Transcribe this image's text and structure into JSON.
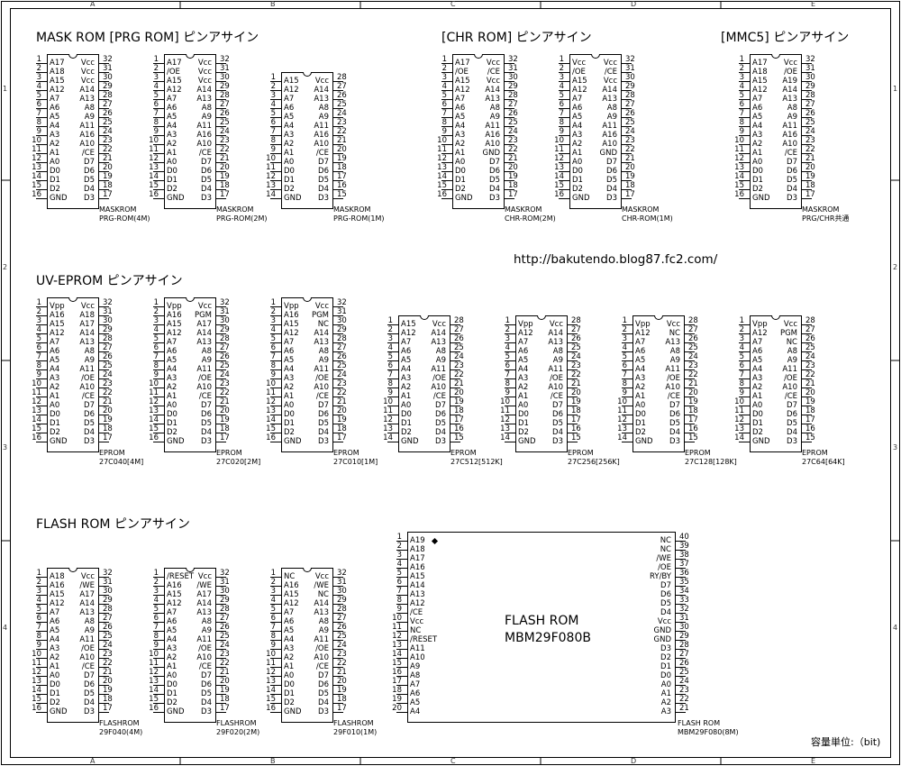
{
  "frame": {
    "cols": [
      "A",
      "B",
      "C",
      "D",
      "E"
    ],
    "rows": [
      "1",
      "2",
      "3",
      "4"
    ]
  },
  "sections": {
    "mask_prg": "MASK ROM [PRG ROM] ピンアサイン",
    "chr": "[CHR ROM] ピンアサイン",
    "mmc5": "[MMC5] ピンアサイン",
    "uveprom": "UV-EPROM ピンアサイン",
    "flash": "FLASH ROM ピンアサイン"
  },
  "url": "http://bakutendo.blog87.fc2.com/",
  "unit_note": "容量単位:（bit)",
  "chips": [
    {
      "id": "prg4m",
      "caption": [
        "MASKROM",
        "PRG-ROM(4M)"
      ],
      "left": [
        "A17",
        "A18",
        "A15",
        "A12",
        "A7",
        "A6",
        "A5",
        "A4",
        "A3",
        "A2",
        "A1",
        "A0",
        "D0",
        "D1",
        "D2",
        "GND"
      ],
      "right": [
        "Vcc",
        "Vcc",
        "Vcc",
        "A14",
        "A13",
        "A8",
        "A9",
        "A11",
        "A16",
        "A10",
        "/CE",
        "D7",
        "D6",
        "D5",
        "D4",
        "D3"
      ]
    },
    {
      "id": "prg2m",
      "caption": [
        "MASKROM",
        "PRG-ROM(2M)"
      ],
      "left": [
        "A17",
        "/OE",
        "A15",
        "A12",
        "A7",
        "A6",
        "A5",
        "A4",
        "A3",
        "A2",
        "A1",
        "A0",
        "D0",
        "D1",
        "D2",
        "GND"
      ],
      "right": [
        "Vcc",
        "Vcc",
        "Vcc",
        "A14",
        "A13",
        "A8",
        "A9",
        "A11",
        "A16",
        "A10",
        "/CE",
        "D7",
        "D6",
        "D5",
        "D4",
        "D3"
      ]
    },
    {
      "id": "prg1m",
      "caption": [
        "MASKROM",
        "PRG-ROM(1M)"
      ],
      "left": [
        "A15",
        "A12",
        "A7",
        "A6",
        "A5",
        "A4",
        "A3",
        "A2",
        "A1",
        "A0",
        "D0",
        "D1",
        "D2",
        "GND"
      ],
      "right": [
        "Vcc",
        "A14",
        "A13",
        "A8",
        "A9",
        "A11",
        "A16",
        "A10",
        "/CE",
        "D7",
        "D6",
        "D5",
        "D4",
        "D3"
      ]
    },
    {
      "id": "chr2m",
      "caption": [
        "MASKROM",
        "CHR-ROM(2M)"
      ],
      "left": [
        "A17",
        "/OE",
        "A15",
        "A12",
        "A7",
        "A6",
        "A5",
        "A4",
        "A3",
        "A2",
        "A1",
        "A0",
        "D0",
        "D1",
        "D2",
        "GND"
      ],
      "right": [
        "Vcc",
        "/CE",
        "Vcc",
        "A14",
        "A13",
        "A8",
        "A9",
        "A11",
        "A16",
        "A10",
        "GND",
        "D7",
        "D6",
        "D5",
        "D4",
        "D3"
      ]
    },
    {
      "id": "chr1m",
      "caption": [
        "MASKROM",
        "CHR-ROM(1M)"
      ],
      "left": [
        "Vcc",
        "/OE",
        "A15",
        "A12",
        "A7",
        "A6",
        "A5",
        "A4",
        "A3",
        "A2",
        "A1",
        "A0",
        "D0",
        "D1",
        "D2",
        "GND"
      ],
      "right": [
        "Vcc",
        "/CE",
        "Vcc",
        "A14",
        "A13",
        "A8",
        "A9",
        "A11",
        "A16",
        "A10",
        "GND",
        "D7",
        "D6",
        "D5",
        "D4",
        "D3"
      ]
    },
    {
      "id": "mmc5",
      "caption": [
        "MASKROM",
        "PRG/CHR共通"
      ],
      "left": [
        "A17",
        "A18",
        "A15",
        "A12",
        "A7",
        "A6",
        "A5",
        "A4",
        "A3",
        "A2",
        "A1",
        "A0",
        "D0",
        "D1",
        "D2",
        "GND"
      ],
      "right": [
        "Vcc",
        "/OE",
        "A19",
        "A14",
        "A13",
        "A8",
        "A9",
        "A11",
        "A16",
        "A10",
        "/CE",
        "D7",
        "D6",
        "D5",
        "D4",
        "D3"
      ]
    },
    {
      "id": "e040",
      "caption": [
        "EPROM",
        "27C040[4M]"
      ],
      "left": [
        "Vpp",
        "A16",
        "A15",
        "A12",
        "A7",
        "A6",
        "A5",
        "A4",
        "A3",
        "A2",
        "A1",
        "A0",
        "D0",
        "D1",
        "D2",
        "GND"
      ],
      "right": [
        "Vcc",
        "A18",
        "A17",
        "A14",
        "A13",
        "A8",
        "A9",
        "A11",
        "/OE",
        "A10",
        "/CE",
        "D7",
        "D6",
        "D5",
        "D4",
        "D3"
      ]
    },
    {
      "id": "e020",
      "caption": [
        "EPROM",
        "27C020[2M]"
      ],
      "left": [
        "Vpp",
        "A16",
        "A15",
        "A12",
        "A7",
        "A6",
        "A5",
        "A4",
        "A3",
        "A2",
        "A1",
        "A0",
        "D0",
        "D1",
        "D2",
        "GND"
      ],
      "right": [
        "Vcc",
        "PGM",
        "A17",
        "A14",
        "A13",
        "A8",
        "A9",
        "A11",
        "/OE",
        "A10",
        "/CE",
        "D7",
        "D6",
        "D5",
        "D4",
        "D3"
      ]
    },
    {
      "id": "e010",
      "caption": [
        "EPROM",
        "27C010[1M]"
      ],
      "left": [
        "Vpp",
        "A16",
        "A15",
        "A12",
        "A7",
        "A6",
        "A5",
        "A4",
        "A3",
        "A2",
        "A1",
        "A0",
        "D0",
        "D1",
        "D2",
        "GND"
      ],
      "right": [
        "Vcc",
        "PGM",
        "NC",
        "A14",
        "A13",
        "A8",
        "A9",
        "A11",
        "/OE",
        "A10",
        "/CE",
        "D7",
        "D6",
        "D5",
        "D4",
        "D3"
      ]
    },
    {
      "id": "e512",
      "caption": [
        "EPROM",
        "27C512[512K]"
      ],
      "left": [
        "A15",
        "A12",
        "A7",
        "A6",
        "A5",
        "A4",
        "A3",
        "A2",
        "A1",
        "A0",
        "D0",
        "D1",
        "D2",
        "GND"
      ],
      "right": [
        "Vcc",
        "A14",
        "A13",
        "A8",
        "A9",
        "A11",
        "/OE",
        "A10",
        "/CE",
        "D7",
        "D6",
        "D5",
        "D4",
        "D3"
      ]
    },
    {
      "id": "e256",
      "caption": [
        "EPROM",
        "27C256[256K]"
      ],
      "left": [
        "Vpp",
        "A12",
        "A7",
        "A6",
        "A5",
        "A4",
        "A3",
        "A2",
        "A1",
        "A0",
        "D0",
        "D1",
        "D2",
        "GND"
      ],
      "right": [
        "Vcc",
        "A14",
        "A13",
        "A8",
        "A9",
        "A11",
        "/OE",
        "A10",
        "/CE",
        "D7",
        "D6",
        "D5",
        "D4",
        "D3"
      ]
    },
    {
      "id": "e128",
      "caption": [
        "EPROM",
        "27C128[128K]"
      ],
      "left": [
        "Vpp",
        "A12",
        "A7",
        "A6",
        "A5",
        "A4",
        "A3",
        "A2",
        "A1",
        "A0",
        "D0",
        "D1",
        "D2",
        "GND"
      ],
      "right": [
        "Vcc",
        "NC",
        "A13",
        "A8",
        "A9",
        "A11",
        "/OE",
        "A10",
        "/CE",
        "D7",
        "D6",
        "D5",
        "D4",
        "D3"
      ]
    },
    {
      "id": "e64",
      "caption": [
        "EPROM",
        "27C64[64K]"
      ],
      "left": [
        "Vpp",
        "A12",
        "A7",
        "A6",
        "A5",
        "A4",
        "A3",
        "A2",
        "A1",
        "A0",
        "D0",
        "D1",
        "D2",
        "GND"
      ],
      "right": [
        "Vcc",
        "PGM",
        "NC",
        "A8",
        "A9",
        "A11",
        "/OE",
        "A10",
        "/CE",
        "D7",
        "D6",
        "D5",
        "D4",
        "D3"
      ]
    },
    {
      "id": "f040",
      "caption": [
        "FLASHROM",
        "29F040(4M)"
      ],
      "left": [
        "A18",
        "A16",
        "A15",
        "A12",
        "A7",
        "A6",
        "A5",
        "A4",
        "A3",
        "A2",
        "A1",
        "A0",
        "D0",
        "D1",
        "D2",
        "GND"
      ],
      "right": [
        "Vcc",
        "/WE",
        "A17",
        "A14",
        "A13",
        "A8",
        "A9",
        "A11",
        "/OE",
        "A10",
        "/CE",
        "D7",
        "D6",
        "D5",
        "D4",
        "D3"
      ]
    },
    {
      "id": "f020",
      "caption": [
        "FLASHROM",
        "29F020(2M)"
      ],
      "left": [
        "/RESET",
        "A16",
        "A15",
        "A12",
        "A7",
        "A6",
        "A5",
        "A4",
        "A3",
        "A2",
        "A1",
        "A0",
        "D0",
        "D1",
        "D2",
        "GND"
      ],
      "right": [
        "Vcc",
        "/WE",
        "A17",
        "A14",
        "A13",
        "A8",
        "A9",
        "A11",
        "/OE",
        "A10",
        "/CE",
        "D7",
        "D6",
        "D5",
        "D4",
        "D3"
      ]
    },
    {
      "id": "f010",
      "caption": [
        "FLASHROM",
        "29F010(1M)"
      ],
      "left": [
        "NC",
        "A16",
        "A15",
        "A12",
        "A7",
        "A6",
        "A5",
        "A4",
        "A3",
        "A2",
        "A1",
        "A0",
        "D0",
        "D1",
        "D2",
        "GND"
      ],
      "right": [
        "Vcc",
        "/WE",
        "NC",
        "A14",
        "A13",
        "A8",
        "A9",
        "A11",
        "/OE",
        "A10",
        "/CE",
        "D7",
        "D6",
        "D5",
        "D4",
        "D3"
      ]
    },
    {
      "id": "f080",
      "caption": [
        "FLASH ROM",
        "MBM29F080(8M)"
      ],
      "center": [
        "FLASH ROM",
        "MBM29F080B"
      ],
      "left": [
        "A19",
        "A18",
        "A17",
        "A16",
        "A15",
        "A14",
        "A13",
        "A12",
        "/CE",
        "Vcc",
        "NC",
        "/RESET",
        "A11",
        "A10",
        "A9",
        "A8",
        "A7",
        "A6",
        "A5",
        "A4"
      ],
      "right": [
        "NC",
        "NC",
        "/WE",
        "/OE",
        "RY/BY",
        "D7",
        "D6",
        "D5",
        "D4",
        "Vcc",
        "GND",
        "GND",
        "D3",
        "D2",
        "D1",
        "D0",
        "A0",
        "A1",
        "A2",
        "A3"
      ]
    }
  ]
}
